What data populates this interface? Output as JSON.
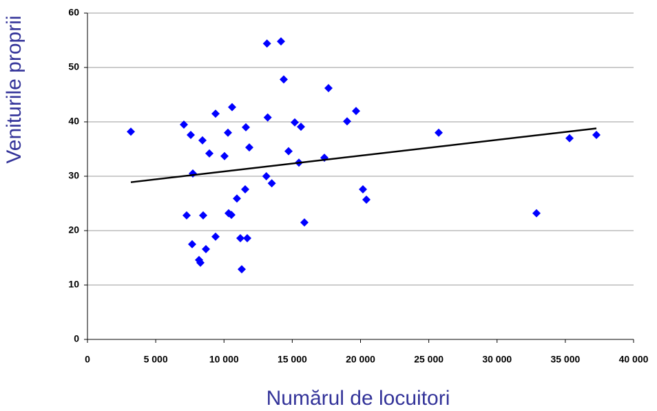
{
  "chart_data": {
    "type": "scatter",
    "x_label": "Numărul de locuitori",
    "y_label": "Veniturile proprii",
    "xlim": [
      0,
      40000
    ],
    "xticks": [
      0,
      {
        "value": 5000,
        "label": "5 000"
      },
      {
        "value": 10000,
        "label": "10 000"
      },
      {
        "value": 15000,
        "label": "15 000"
      },
      {
        "value": 20000,
        "label": "20 000"
      },
      {
        "value": 25000,
        "label": "25 000"
      },
      {
        "value": 30000,
        "label": "30 000"
      },
      {
        "value": 35000,
        "label": "35 000"
      },
      {
        "value": 40000,
        "label": "40 000"
      }
    ],
    "ylim": [
      0,
      60
    ],
    "yticks": [
      0,
      10,
      20,
      30,
      40,
      50,
      60
    ],
    "grid": true,
    "series": [
      {
        "color": "#0000ff",
        "x": [
          3178,
          7062,
          7566,
          7717,
          7264,
          7667,
          8171,
          8272,
          8424,
          8474,
          8676,
          8928,
          9382,
          9382,
          10038,
          10290,
          10340,
          10593,
          10542,
          10946,
          11198,
          11299,
          11551,
          11602,
          11702,
          11854,
          13100,
          13500,
          13150,
          14174,
          13200,
          14376,
          15183,
          15637,
          14729,
          15486,
          15889,
          17352,
          17654,
          19016,
          19672,
          20177,
          20429,
          25725,
          32888,
          35309,
          37276
        ],
        "values": [
          38.2,
          39.5,
          37.6,
          30.5,
          22.8,
          17.5,
          14.6,
          14.1,
          36.6,
          22.8,
          16.6,
          34.2,
          41.5,
          18.9,
          33.7,
          38.0,
          23.2,
          42.7,
          22.9,
          25.9,
          18.6,
          12.9,
          27.6,
          39.0,
          18.6,
          35.3,
          30.0,
          28.7,
          54.4,
          54.8,
          40.8,
          47.8,
          39.9,
          39.1,
          34.6,
          32.5,
          21.5,
          33.4,
          46.2,
          40.1,
          42.0,
          27.6,
          25.7,
          38.0,
          23.2,
          37.0,
          37.6
        ]
      }
    ],
    "trendline": {
      "color": "#000000",
      "x": [
        3178,
        37276
      ],
      "values": [
        28.9,
        38.8
      ]
    }
  }
}
